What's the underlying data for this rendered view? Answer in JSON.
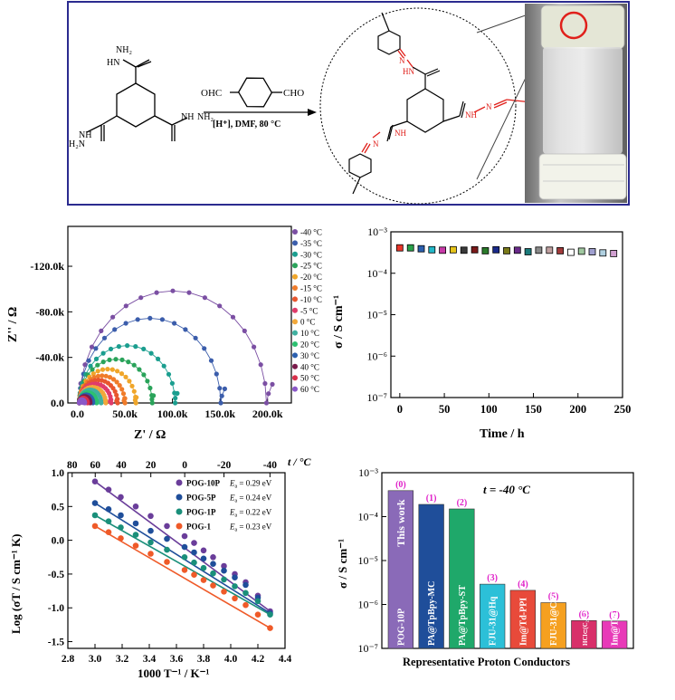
{
  "reaction": {
    "reagent": "OHC—⌬—CHO",
    "reagent_left": "OHC",
    "reagent_right": "CHO",
    "conditions": "[H⁺], DMF, 80 °C",
    "nh2_top": "NH₂",
    "hn_top": "HN",
    "nh_left": "NH",
    "h2n_left": "H₂N",
    "nh_right": "NH",
    "nh2_right": "NH₂",
    "prod_hn": "HN",
    "prod_n1": "N",
    "prod_nh_right": "NH",
    "prod_n_right": "N",
    "prod_nh_left": "NH",
    "prod_n_left": "N"
  },
  "colors": {
    "frame_blue": "#2b2b8f",
    "red": "#e0201b",
    "purple_series": "#6a3d9a",
    "navy_series": "#1f4e9a",
    "teal_series": "#1a8f7a",
    "orange_series": "#ef5a28"
  },
  "chart_data": [
    {
      "type": "scatter",
      "panel": "nyquist",
      "xlabel": "Z' / Ω",
      "ylabel": "Z'' / Ω",
      "xticks": [
        "0.0",
        "50.0k",
        "100.0k",
        "150.0k",
        "200.0k"
      ],
      "yticks": [
        "0.0",
        "-40.0k",
        "-80.0k",
        "-120.0k"
      ],
      "xlim": [
        -10000,
        225000
      ],
      "ylim": [
        0,
        155000
      ],
      "series": [
        {
          "name": "-40 °C",
          "color": "#7b4fa3",
          "end": 205000
        },
        {
          "name": "-35 °C",
          "color": "#3b5dab",
          "end": 155000
        },
        {
          "name": "-30 °C",
          "color": "#1b9e8f",
          "end": 105000
        },
        {
          "name": "-25 °C",
          "color": "#2aa35a",
          "end": 80000
        },
        {
          "name": "-20 °C",
          "color": "#f0a62a",
          "end": 62000
        },
        {
          "name": "-15 °C",
          "color": "#f07c2a",
          "end": 50000
        },
        {
          "name": "-10 °C",
          "color": "#e8562e",
          "end": 42000
        },
        {
          "name": "-5 °C",
          "color": "#e03c6a",
          "end": 35000
        },
        {
          "name": "0 °C",
          "color": "#f2a83a",
          "end": 29000
        },
        {
          "name": "10 °C",
          "color": "#3fb0a0",
          "end": 24000
        },
        {
          "name": "20 °C",
          "color": "#2cc070",
          "end": 19000
        },
        {
          "name": "30 °C",
          "color": "#2b5fae",
          "end": 15000
        },
        {
          "name": "40 °C",
          "color": "#7a1a4a",
          "end": 12000
        },
        {
          "name": "50 °C",
          "color": "#d8304a",
          "end": 9000
        },
        {
          "name": "60 °C",
          "color": "#8a58c8",
          "end": 6000
        }
      ]
    },
    {
      "type": "scatter",
      "panel": "stability",
      "xlabel": "Time  / h",
      "ylabel": "σ / S cm⁻¹",
      "xticks": [
        "0",
        "50",
        "100",
        "150",
        "200",
        "250"
      ],
      "yticks": [
        "10⁻³",
        "10⁻⁴",
        "10⁻⁵",
        "10⁻⁶",
        "10⁻⁷"
      ],
      "xlim": [
        -10,
        250
      ],
      "ylim_log": [
        -7,
        -3
      ],
      "x": [
        0,
        12,
        24,
        36,
        48,
        60,
        72,
        84,
        96,
        108,
        120,
        132,
        144,
        156,
        168,
        180,
        192,
        204,
        216,
        228,
        240
      ],
      "y": [
        0.00041,
        0.00041,
        0.00039,
        0.00037,
        0.00036,
        0.00037,
        0.00036,
        0.00037,
        0.00035,
        0.00037,
        0.00035,
        0.00036,
        0.00033,
        0.00036,
        0.00036,
        0.00035,
        0.00032,
        0.00034,
        0.00033,
        0.00031,
        0.0003
      ],
      "colors": [
        "#e8362a",
        "#2aa14a",
        "#2b5fae",
        "#23b8c8",
        "#c83aa8",
        "#e6c41a",
        "#3a3a3a",
        "#7b1a1a",
        "#2a7a2a",
        "#1a2a8a",
        "#7a7a1a",
        "#6a2a8a",
        "#1a7a7a",
        "#8a8a8a",
        "#c0a0a0",
        "#a03a3a",
        "#ffffff",
        "#a0c8a0",
        "#a0a0d0",
        "#b0d0e0",
        "#d0a0d0"
      ]
    },
    {
      "type": "scatter",
      "panel": "arrhenius",
      "xlabel": "1000 T⁻¹ / K⁻¹",
      "ylabel": "Log (σT / S cm⁻¹ K)",
      "top_axis_label": "t / °C",
      "xticks": [
        "2.8",
        "3.0",
        "3.2",
        "3.4",
        "3.6",
        "3.8",
        "4.0",
        "4.2",
        "4.4"
      ],
      "yticks": [
        "1.0",
        "0.5",
        "0.0",
        "-0.5",
        "-1.0",
        "-1.5"
      ],
      "top_ticks": [
        "80",
        "60",
        "40",
        "20",
        "0",
        "-20",
        "-40"
      ],
      "top_tick_values": [
        80,
        60,
        40,
        20,
        0,
        -20,
        -40
      ],
      "xlim": [
        2.8,
        4.4
      ],
      "ylim": [
        -1.6,
        1.0
      ],
      "x": [
        3.0,
        3.1,
        3.19,
        3.3,
        3.41,
        3.53,
        3.66,
        3.73,
        3.8,
        3.87,
        3.95,
        4.03,
        4.11,
        4.2,
        4.29
      ],
      "series": [
        {
          "name": "POG-10P",
          "ea": "= 0.29 eV",
          "color": "#6a3d9a",
          "y": [
            0.87,
            0.75,
            0.64,
            0.5,
            0.36,
            0.21,
            0.06,
            -0.04,
            -0.15,
            -0.25,
            -0.38,
            -0.5,
            -0.62,
            -0.82,
            -1.05
          ]
        },
        {
          "name": "POG-5P",
          "ea": "= 0.24 eV",
          "color": "#1f4e9a",
          "y": [
            0.55,
            0.46,
            0.37,
            0.25,
            0.14,
            0.02,
            -0.1,
            -0.18,
            -0.27,
            -0.35,
            -0.45,
            -0.55,
            -0.66,
            -0.85,
            -1.08
          ]
        },
        {
          "name": "POG-1P",
          "ea": "= 0.22 eV",
          "color": "#1a8f7a",
          "y": [
            0.37,
            0.28,
            0.19,
            0.08,
            -0.03,
            -0.14,
            -0.25,
            -0.33,
            -0.41,
            -0.49,
            -0.58,
            -0.68,
            -0.78,
            -0.9,
            -1.1
          ]
        },
        {
          "name": "POG-1",
          "ea": "= 0.23 eV",
          "color": "#ef5a28",
          "y": [
            0.21,
            0.12,
            0.03,
            -0.08,
            -0.2,
            -0.32,
            -0.44,
            -0.51,
            -0.59,
            -0.67,
            -0.76,
            -0.86,
            -0.96,
            -1.1,
            -1.3
          ]
        }
      ]
    },
    {
      "type": "bar",
      "panel": "comparison",
      "annotation": "t = -40 °C",
      "xlabel": "Representative Proton Conductors",
      "ylabel": "σ / S cm⁻¹",
      "yticks": [
        "10⁻³",
        "10⁻⁴",
        "10⁻⁵",
        "10⁻⁶",
        "10⁻⁷"
      ],
      "ylim_log": [
        -7,
        -3
      ],
      "categories": [
        "POG-10P",
        "PA@TpBpy-MC",
        "PA@TpBpy-ST",
        "FJU-31@Hq",
        "Im@Td-PPI",
        "FJU-31@Ch",
        "HCl⊂(C₂N₂H₁₀)(C₂N₂H₉)₂Cu₈Sn₃S₁₂",
        "Im@Td-PNDI"
      ],
      "indices": [
        "(0)",
        "(1)",
        "(2)",
        "(3)",
        "(4)",
        "(5)",
        "(6)",
        "(7)"
      ],
      "values": [
        0.00039,
        0.00019,
        0.00015,
        2.9e-06,
        2.1e-06,
        1.1e-06,
        4.3e-07,
        4.2e-07
      ],
      "colors": [
        "#8a6ab8",
        "#1f4e9a",
        "#1fa86a",
        "#2cc0d8",
        "#e84a3a",
        "#f5a020",
        "#d8306a",
        "#e83ab8"
      ],
      "top_label": "This work"
    }
  ]
}
